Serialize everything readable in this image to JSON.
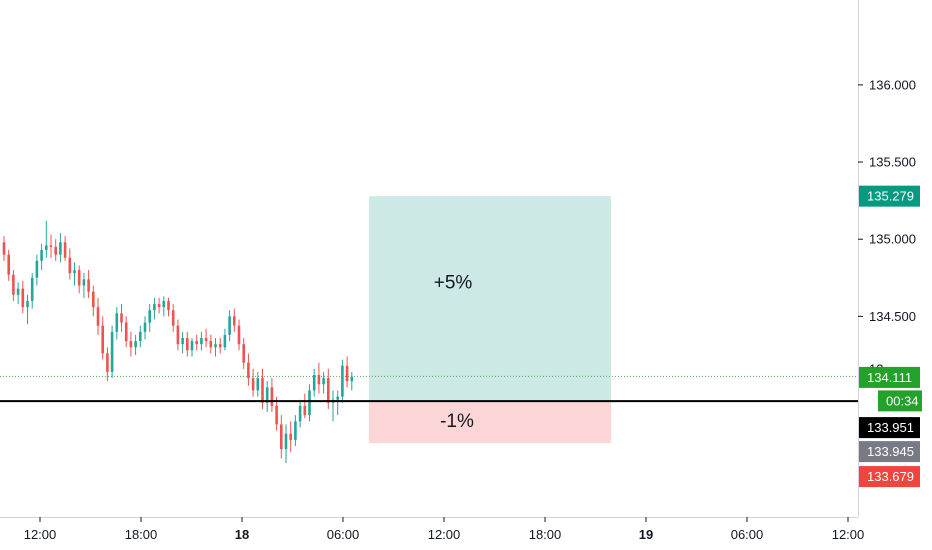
{
  "chart_data": {
    "type": "candlestick",
    "y_ticks": [
      "136.000",
      "135.500",
      "135.000",
      "134.500"
    ],
    "y_tick_values": [
      136.0,
      135.5,
      135.0,
      134.5
    ],
    "x_ticks": [
      {
        "label": "12:00",
        "bold": false
      },
      {
        "label": "18:00",
        "bold": false
      },
      {
        "label": "18",
        "bold": true
      },
      {
        "label": "06:00",
        "bold": false
      },
      {
        "label": "12:00",
        "bold": false
      },
      {
        "label": "18:00",
        "bold": false
      },
      {
        "label": "19",
        "bold": true
      },
      {
        "label": "06:00",
        "bold": false
      },
      {
        "label": "12:00",
        "bold": false
      }
    ],
    "ylim": [
      133.2,
      136.55
    ],
    "colors": {
      "up": "#26a69a",
      "down": "#ef5350",
      "last_price_line": "#4caf50",
      "profit_zone": "#cce9e6",
      "loss_zone": "#fcd6d6",
      "entry_line": "#000000"
    },
    "candles": [
      [
        134.98,
        135.02,
        134.86,
        134.9
      ],
      [
        134.9,
        134.93,
        134.73,
        134.77
      ],
      [
        134.77,
        134.8,
        134.6,
        134.64
      ],
      [
        134.64,
        134.72,
        134.58,
        134.68
      ],
      [
        134.68,
        134.73,
        134.52,
        134.56
      ],
      [
        134.56,
        134.64,
        134.45,
        134.6
      ],
      [
        134.6,
        134.78,
        134.55,
        134.75
      ],
      [
        134.75,
        134.9,
        134.7,
        134.86
      ],
      [
        134.86,
        134.97,
        134.8,
        134.93
      ],
      [
        134.93,
        135.12,
        134.88,
        134.96
      ],
      [
        134.96,
        135.03,
        134.88,
        134.95
      ],
      [
        134.95,
        135.0,
        134.86,
        134.9
      ],
      [
        134.9,
        135.04,
        134.85,
        134.98
      ],
      [
        134.98,
        135.02,
        134.86,
        134.88
      ],
      [
        134.88,
        134.94,
        134.74,
        134.78
      ],
      [
        134.78,
        134.85,
        134.7,
        134.8
      ],
      [
        134.8,
        134.83,
        134.65,
        134.7
      ],
      [
        134.7,
        134.78,
        134.62,
        134.74
      ],
      [
        134.74,
        134.8,
        134.62,
        134.66
      ],
      [
        134.66,
        134.7,
        134.5,
        134.56
      ],
      [
        134.56,
        134.62,
        134.38,
        134.44
      ],
      [
        134.44,
        134.5,
        134.22,
        134.26
      ],
      [
        134.26,
        134.3,
        134.08,
        134.14
      ],
      [
        134.14,
        134.44,
        134.1,
        134.4
      ],
      [
        134.4,
        134.56,
        134.35,
        134.52
      ],
      [
        134.52,
        134.58,
        134.4,
        134.46
      ],
      [
        134.46,
        134.5,
        134.3,
        134.34
      ],
      [
        134.34,
        134.4,
        134.24,
        134.3
      ],
      [
        134.3,
        134.38,
        134.25,
        134.34
      ],
      [
        134.34,
        134.44,
        134.3,
        134.4
      ],
      [
        134.4,
        134.5,
        134.35,
        134.46
      ],
      [
        134.46,
        134.58,
        134.4,
        134.54
      ],
      [
        134.54,
        134.62,
        134.48,
        134.58
      ],
      [
        134.58,
        134.62,
        134.52,
        134.56
      ],
      [
        134.56,
        134.63,
        134.5,
        134.6
      ],
      [
        134.6,
        134.62,
        134.5,
        134.54
      ],
      [
        134.54,
        134.58,
        134.4,
        134.44
      ],
      [
        134.44,
        134.48,
        134.28,
        134.32
      ],
      [
        134.32,
        134.4,
        134.26,
        134.36
      ],
      [
        134.36,
        134.4,
        134.24,
        134.28
      ],
      [
        134.28,
        134.36,
        134.24,
        134.34
      ],
      [
        134.34,
        134.38,
        134.28,
        134.32
      ],
      [
        134.32,
        134.4,
        134.28,
        134.36
      ],
      [
        134.36,
        134.42,
        134.3,
        134.34
      ],
      [
        134.34,
        134.38,
        134.26,
        134.3
      ],
      [
        134.3,
        134.36,
        134.24,
        134.32
      ],
      [
        134.32,
        134.36,
        134.26,
        134.3
      ],
      [
        134.3,
        134.42,
        134.28,
        134.38
      ],
      [
        134.38,
        134.54,
        134.34,
        134.5
      ],
      [
        134.5,
        134.55,
        134.4,
        134.44
      ],
      [
        134.44,
        134.48,
        134.28,
        134.32
      ],
      [
        134.32,
        134.36,
        134.16,
        134.2
      ],
      [
        134.2,
        134.26,
        134.05,
        134.1
      ],
      [
        134.1,
        134.16,
        133.98,
        134.02
      ],
      [
        134.02,
        134.14,
        133.98,
        134.1
      ],
      [
        134.1,
        134.16,
        133.9,
        133.94
      ],
      [
        133.94,
        134.08,
        133.88,
        134.04
      ],
      [
        134.04,
        134.1,
        133.88,
        133.92
      ],
      [
        133.92,
        133.98,
        133.76,
        133.8
      ],
      [
        133.8,
        133.86,
        133.58,
        133.64
      ],
      [
        133.64,
        133.8,
        133.55,
        133.74
      ],
      [
        133.74,
        133.82,
        133.62,
        133.7
      ],
      [
        133.7,
        133.86,
        133.66,
        133.82
      ],
      [
        133.82,
        133.96,
        133.78,
        133.92
      ],
      [
        133.92,
        134.0,
        133.84,
        133.86
      ],
      [
        133.86,
        134.06,
        133.82,
        134.02
      ],
      [
        134.02,
        134.16,
        133.98,
        134.12
      ],
      [
        134.12,
        134.2,
        134.0,
        134.06
      ],
      [
        134.06,
        134.14,
        134.0,
        134.1
      ],
      [
        134.1,
        134.16,
        133.9,
        133.94
      ],
      [
        133.94,
        134.02,
        133.82,
        133.96
      ],
      [
        133.96,
        134.02,
        133.86,
        133.98
      ],
      [
        133.98,
        134.22,
        133.94,
        134.18
      ],
      [
        134.18,
        134.24,
        134.04,
        134.08
      ],
      [
        134.08,
        134.14,
        134.02,
        134.11
      ]
    ],
    "entry_price": 133.951,
    "target_price": 135.279,
    "stop_price": 133.679,
    "last_price": 134.111,
    "position": {
      "profit_label": "+5%",
      "loss_label": "-1%"
    },
    "price_tags": {
      "target": "135.279",
      "last": "134.111",
      "countdown": "00:34",
      "entry": "133.951",
      "other": "133.945",
      "stop": "133.679",
      "partial_hidden": "13"
    }
  }
}
